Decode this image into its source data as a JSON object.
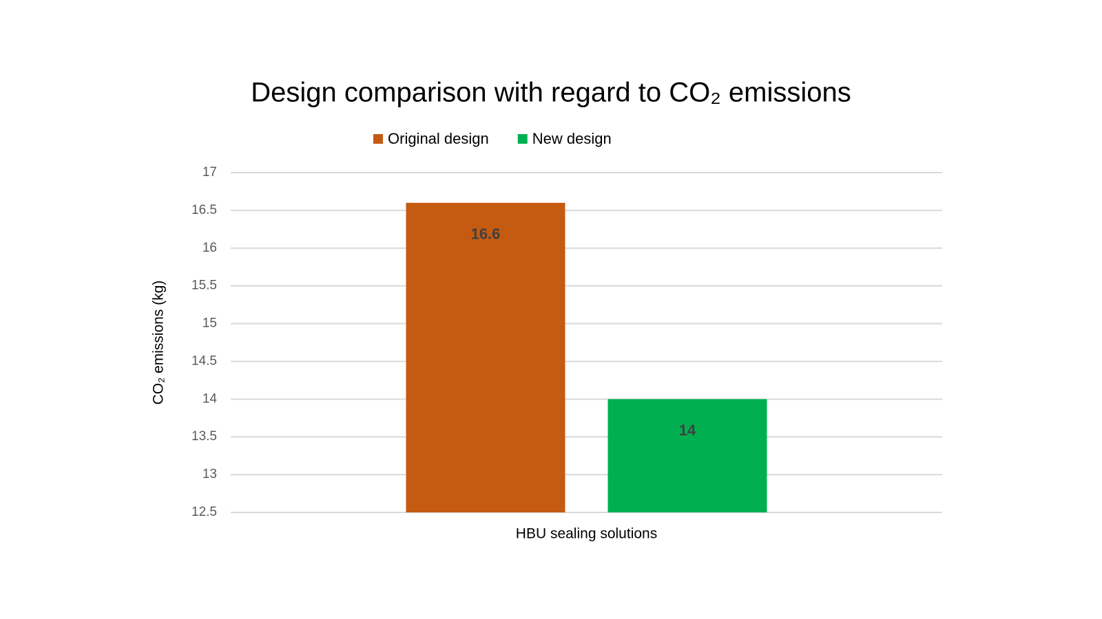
{
  "chart_data": {
    "type": "bar",
    "title": "Design comparison with regard to CO₂ emissions",
    "y_label": "CO₂ emissions (kg)",
    "x_label": "HBU sealing solutions",
    "categories": [
      "HBU sealing solutions"
    ],
    "series": [
      {
        "name": "Original design",
        "color": "#c55a11",
        "values": [
          16.6
        ]
      },
      {
        "name": "New design",
        "color": "#00b050",
        "values": [
          14
        ]
      }
    ],
    "ylim": [
      12.5,
      17
    ],
    "yticks": [
      12.5,
      13,
      13.5,
      14,
      14.5,
      15,
      15.5,
      16,
      16.5,
      17
    ],
    "grid": true,
    "legend": "top"
  }
}
